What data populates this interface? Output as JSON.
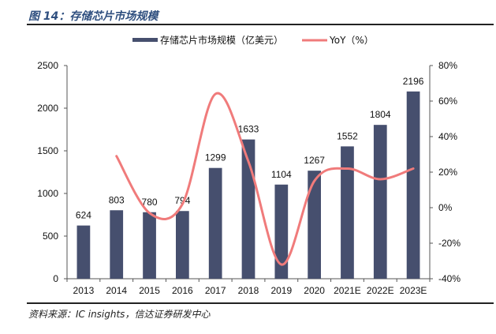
{
  "figure": {
    "title": "图 14：存储芯片市场规模",
    "source": "资料来源：IC insights，信达证券研发中心"
  },
  "chart_data": {
    "type": "bar",
    "title": "存储芯片市场规模",
    "categories": [
      "2013",
      "2014",
      "2015",
      "2016",
      "2017",
      "2018",
      "2019",
      "2020",
      "2021E",
      "2022E",
      "2023E"
    ],
    "series": [
      {
        "name": "存储芯片市场规模（亿美元）",
        "type": "bar",
        "axis": "left",
        "color": "#464f6e",
        "values": [
          624,
          803,
          780,
          794,
          1299,
          1633,
          1104,
          1267,
          1552,
          1804,
          2196
        ]
      },
      {
        "name": "YoY（%）",
        "type": "line",
        "axis": "right",
        "color": "#f07b7b",
        "smooth": true,
        "values": [
          null,
          29,
          -3,
          2,
          64,
          26,
          -32,
          15,
          22,
          16,
          22
        ]
      }
    ],
    "left_axis": {
      "min": 0,
      "max": 2500,
      "ticks": [
        0,
        500,
        1000,
        1500,
        2000,
        2500
      ],
      "tick_labels": [
        "0",
        "500",
        "1000",
        "1500",
        "2000",
        "2500"
      ]
    },
    "right_axis": {
      "min": -40,
      "max": 80,
      "ticks": [
        -40,
        -20,
        0,
        20,
        40,
        60,
        80
      ],
      "tick_labels": [
        "-40%",
        "-20%",
        "0%",
        "20%",
        "40%",
        "60%",
        "80%"
      ]
    },
    "xlabel": "",
    "ylabel": "",
    "grid": false,
    "legend_position": "top-center",
    "data_labels": [
      "624",
      "803",
      "780",
      "794",
      "1299",
      "1633",
      "1104",
      "1267",
      "1552",
      "1804",
      "2196"
    ]
  }
}
